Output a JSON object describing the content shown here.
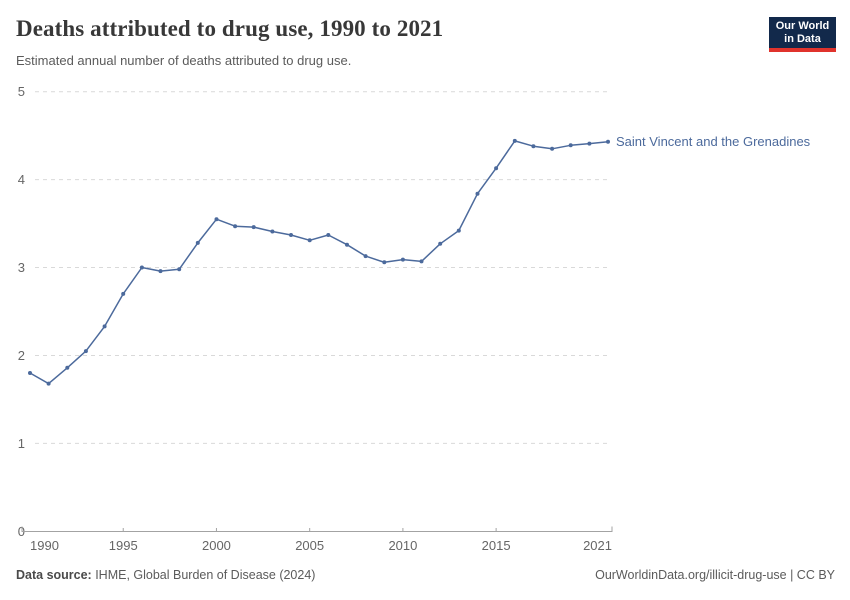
{
  "header": {
    "title": "Deaths attributed to drug use, 1990 to 2021",
    "subtitle": "Estimated annual number of deaths attributed to drug use.",
    "logo": {
      "line1": "Our World",
      "line2": "in Data",
      "bg_color": "#12294B",
      "stripe_color": "#E0332C"
    }
  },
  "chart_data": {
    "type": "line",
    "title": "Deaths attributed to drug use, 1990 to 2021",
    "xlabel": "",
    "ylabel": "",
    "xlim": [
      1990,
      2021
    ],
    "ylim": [
      0,
      5
    ],
    "x_ticks": [
      1990,
      1995,
      2000,
      2005,
      2010,
      2015,
      2021
    ],
    "y_ticks": [
      0,
      1,
      2,
      3,
      4,
      5
    ],
    "grid": "horizontal-dashed",
    "legend_position": "end-of-line-label",
    "series": [
      {
        "name": "Saint Vincent and the Grenadines",
        "color": "#4C6A9C",
        "x": [
          1990,
          1991,
          1992,
          1993,
          1994,
          1995,
          1996,
          1997,
          1998,
          1999,
          2000,
          2001,
          2002,
          2003,
          2004,
          2005,
          2006,
          2007,
          2008,
          2009,
          2010,
          2011,
          2012,
          2013,
          2014,
          2015,
          2016,
          2017,
          2018,
          2019,
          2020,
          2021
        ],
        "values": [
          1.8,
          1.68,
          1.86,
          2.05,
          2.33,
          2.7,
          3.0,
          2.96,
          2.98,
          3.28,
          3.55,
          3.47,
          3.46,
          3.41,
          3.37,
          3.31,
          3.37,
          3.26,
          3.13,
          3.06,
          3.09,
          3.07,
          3.27,
          3.42,
          3.84,
          4.13,
          4.44,
          4.38,
          4.35,
          4.39,
          4.41,
          4.43
        ]
      }
    ]
  },
  "footer": {
    "source_label": "Data source:",
    "source_value": " IHME, Global Burden of Disease (2024)",
    "credit": "OurWorldinData.org/illicit-drug-use | CC BY"
  }
}
